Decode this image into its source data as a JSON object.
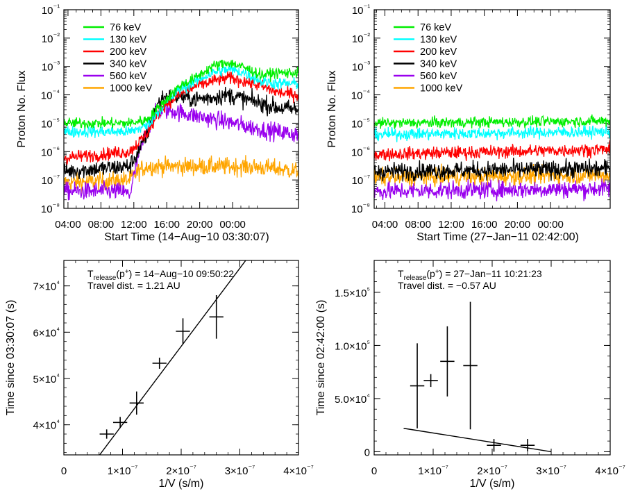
{
  "chart_data": [
    {
      "type": "line",
      "xlabel": "Start Time (14−Aug−10 03:30:07)",
      "ylabel": "Proton No. Flux",
      "ylog": true,
      "ylim": [
        1e-08,
        0.1
      ],
      "xlim": [
        0,
        28.5
      ],
      "x_unit": "hours since 03:30:07",
      "xticks": [
        {
          "at": 0.5,
          "label": "04:00"
        },
        {
          "at": 4.5,
          "label": "08:00"
        },
        {
          "at": 8.5,
          "label": "12:00"
        },
        {
          "at": 12.5,
          "label": "16:00"
        },
        {
          "at": 16.5,
          "label": "20:00"
        },
        {
          "at": 20.5,
          "label": "00:00"
        }
      ],
      "yticks": [
        "10⁻¹",
        "10⁻²",
        "10⁻³",
        "10⁻⁴",
        "10⁻⁵",
        "10⁻⁶",
        "10⁻⁷",
        "10⁻⁸"
      ],
      "legend_position": "top-left",
      "series": [
        {
          "name": "76 keV",
          "color": "#00ee00",
          "x": [
            0,
            8,
            10,
            12,
            14,
            16,
            18,
            20,
            22,
            24,
            26,
            28.5
          ],
          "y": [
            1e-05,
            1e-05,
            1.3e-05,
            5e-05,
            0.0002,
            0.0004,
            0.001,
            0.0014,
            0.0009,
            0.0005,
            0.0006,
            0.0006
          ]
        },
        {
          "name": "130 keV",
          "color": "#00ffff",
          "x": [
            0,
            8,
            10,
            12,
            14,
            16,
            18,
            20,
            22,
            24,
            26,
            28.5
          ],
          "y": [
            5e-06,
            5e-06,
            8e-06,
            4e-05,
            0.00015,
            0.0003,
            0.0006,
            0.0008,
            0.0006,
            0.0003,
            0.00025,
            0.00025
          ]
        },
        {
          "name": "200 keV",
          "color": "#ff0000",
          "x": [
            0,
            8,
            10,
            12,
            14,
            16,
            18,
            20,
            22,
            24,
            26,
            28.5
          ],
          "y": [
            6e-07,
            1e-06,
            4e-06,
            4e-05,
            0.0001,
            0.0002,
            0.0003,
            0.0004,
            0.0003,
            0.0002,
            0.00012,
            0.0001
          ]
        },
        {
          "name": "340 keV",
          "color": "#000000",
          "x": [
            0,
            8,
            10,
            11,
            12,
            14,
            16,
            18,
            20,
            22,
            24,
            26,
            28.5
          ],
          "y": [
            2e-07,
            3e-07,
            3e-06,
            3e-05,
            8e-05,
            9e-05,
            7e-05,
            8e-05,
            0.0001,
            7e-05,
            5e-05,
            3.5e-05,
            3e-05
          ]
        },
        {
          "name": "560 keV",
          "color": "#9900ee",
          "x": [
            0,
            7,
            8,
            9,
            10,
            11,
            12,
            14,
            16,
            18,
            20,
            22,
            24,
            26,
            28.5
          ],
          "y": [
            4e-08,
            4e-08,
            3e-08,
            6e-07,
            5e-06,
            2e-05,
            3e-05,
            2.5e-05,
            1.8e-05,
            1.4e-05,
            1.1e-05,
            8e-06,
            6e-06,
            5e-06,
            4e-06
          ]
        },
        {
          "name": "1000 keV",
          "color": "#ffa500",
          "x": [
            0,
            8,
            9,
            10,
            14,
            18,
            22,
            26,
            28.5
          ],
          "y": [
            8e-08,
            1e-07,
            2e-07,
            3e-07,
            3e-07,
            3e-07,
            3e-07,
            2.5e-07,
            2e-07
          ]
        }
      ]
    },
    {
      "type": "line",
      "xlabel": "Start Time (27−Jan−11 02:42:00)",
      "ylabel": "Proton No. Flux",
      "ylog": true,
      "ylim": [
        1e-08,
        0.1
      ],
      "xlim": [
        0,
        28.5
      ],
      "x_unit": "hours since 02:42:00",
      "xticks": [
        {
          "at": 1.3,
          "label": "04:00"
        },
        {
          "at": 5.3,
          "label": "08:00"
        },
        {
          "at": 9.3,
          "label": "12:00"
        },
        {
          "at": 13.3,
          "label": "16:00"
        },
        {
          "at": 17.3,
          "label": "20:00"
        },
        {
          "at": 21.3,
          "label": "00:00"
        }
      ],
      "yticks": [
        "10⁻¹",
        "10⁻²",
        "10⁻³",
        "10⁻⁴",
        "10⁻⁵",
        "10⁻⁶",
        "10⁻⁷",
        "10⁻⁸"
      ],
      "legend_position": "top-left",
      "series": [
        {
          "name": "76 keV",
          "color": "#00ee00",
          "x": [
            0,
            28.5
          ],
          "y": [
            1e-05,
            1.2e-05
          ]
        },
        {
          "name": "130 keV",
          "color": "#00ffff",
          "x": [
            0,
            28.5
          ],
          "y": [
            4e-06,
            5e-06
          ]
        },
        {
          "name": "200 keV",
          "color": "#ff0000",
          "x": [
            0,
            28.5
          ],
          "y": [
            8e-07,
            1.2e-06
          ]
        },
        {
          "name": "340 keV",
          "color": "#000000",
          "x": [
            0,
            28.5
          ],
          "y": [
            2e-07,
            2.5e-07
          ]
        },
        {
          "name": "560 keV",
          "color": "#9900ee",
          "x": [
            0,
            28.5
          ],
          "y": [
            4e-08,
            5e-08
          ]
        },
        {
          "name": "1000 keV",
          "color": "#ffa500",
          "x": [
            0,
            28.5
          ],
          "y": [
            1.2e-07,
            1.5e-07
          ]
        }
      ]
    },
    {
      "type": "scatter",
      "xlabel": "1/V (s/m)",
      "ylabel": "Time since 03:30:07 (s)",
      "xlim": [
        0,
        4e-07
      ],
      "ylim": [
        33500,
        75500
      ],
      "xticks": [
        "0",
        "1×10⁻⁷",
        "2×10⁻⁷",
        "3×10⁻⁷",
        "4×10⁻⁷"
      ],
      "yticks": [
        {
          "at": 40000,
          "label": "4×10⁴"
        },
        {
          "at": 50000,
          "label": "5×10⁴"
        },
        {
          "at": 60000,
          "label": "6×10⁴"
        },
        {
          "at": 70000,
          "label": "7×10⁴"
        }
      ],
      "annotation": {
        "line1_prefix": "T",
        "line1_sub": "release",
        "line1_mid": "(p",
        "line1_sup": "+",
        "line1_value": ") = 14−Aug−10 09:50:22",
        "line2": "Travel dist. = 1.21 AU"
      },
      "points": [
        {
          "x": 7.3e-08,
          "y": 38000,
          "xerr": 1.2e-08,
          "yerr": 1000
        },
        {
          "x": 9.6e-08,
          "y": 40500,
          "xerr": 1.2e-08,
          "yerr": 1200
        },
        {
          "x": 1.24e-07,
          "y": 44700,
          "xerr": 1.2e-08,
          "yerr": 2500
        },
        {
          "x": 1.63e-07,
          "y": 53300,
          "xerr": 1.2e-08,
          "yerr": 1200
        },
        {
          "x": 2.03e-07,
          "y": 60200,
          "xerr": 1.2e-08,
          "yerr": 2800
        },
        {
          "x": 2.6e-07,
          "y": 63300,
          "xerr": 1.2e-08,
          "yerr": 4700
        }
      ],
      "fit": {
        "x": [
          6.1e-08,
          3.1e-07
        ],
        "y": [
          33500,
          75500
        ]
      }
    },
    {
      "type": "scatter",
      "xlabel": "1/V (s/m)",
      "ylabel": "Time since 02:42:00 (s)",
      "xlim": [
        0,
        4e-07
      ],
      "ylim": [
        -3000,
        180000
      ],
      "xticks": [
        "0",
        "1×10⁻⁷",
        "2×10⁻⁷",
        "3×10⁻⁷",
        "4×10⁻⁷"
      ],
      "yticks": [
        {
          "at": 0,
          "label": "0"
        },
        {
          "at": 50000,
          "label": "5.0×10⁴"
        },
        {
          "at": 100000,
          "label": "1.0×10⁵"
        },
        {
          "at": 150000,
          "label": "1.5×10⁵"
        }
      ],
      "annotation": {
        "line1_prefix": "T",
        "line1_sub": "release",
        "line1_mid": "(p",
        "line1_sup": "+",
        "line1_value": ") = 27−Jan−11 10:21:23",
        "line2": "Travel dist. = −0.57 AU"
      },
      "points": [
        {
          "x": 7.3e-08,
          "y": 62000,
          "xerr": 1.2e-08,
          "yerr": 40000
        },
        {
          "x": 9.6e-08,
          "y": 67000,
          "xerr": 1.2e-08,
          "yerr": 6000
        },
        {
          "x": 1.24e-07,
          "y": 85000,
          "xerr": 1.2e-08,
          "yerr": 33000
        },
        {
          "x": 1.63e-07,
          "y": 81000,
          "xerr": 1.2e-08,
          "yerr": 60000
        },
        {
          "x": 2.03e-07,
          "y": 6000,
          "xerr": 1.2e-08,
          "yerr": 6000
        },
        {
          "x": 2.6e-07,
          "y": 6000,
          "xerr": 1.2e-08,
          "yerr": 6000
        }
      ],
      "fit": {
        "x": [
          5e-08,
          3e-07
        ],
        "y": [
          22000,
          0
        ]
      }
    }
  ]
}
